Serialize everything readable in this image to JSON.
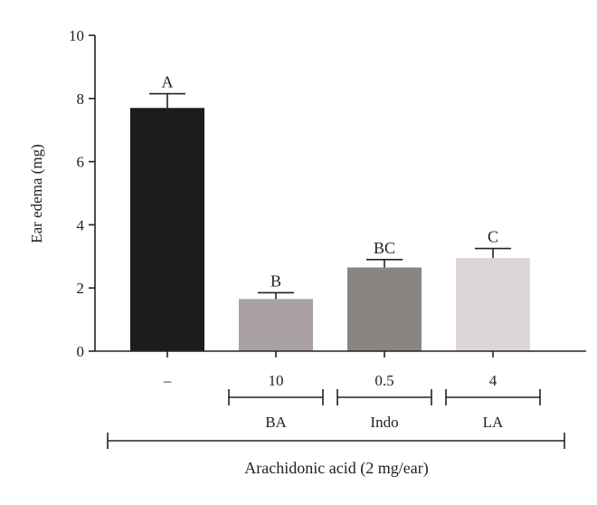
{
  "chart_data": {
    "type": "bar",
    "ylabel": "Ear edema (mg)",
    "ylim": [
      0,
      10
    ],
    "yticks": [
      0,
      2,
      4,
      6,
      8,
      10
    ],
    "grid": false,
    "categories": [
      "–",
      "10",
      "0.5",
      "4"
    ],
    "values": [
      7.7,
      1.65,
      2.65,
      2.95
    ],
    "errors": [
      0.45,
      0.2,
      0.25,
      0.3
    ],
    "significance_letters": [
      "A",
      "B",
      "BC",
      "C"
    ],
    "bar_colors": [
      "#1c1c1c",
      "#a9a1a3",
      "#8a8483",
      "#dcd6d6"
    ],
    "group_labels": [
      {
        "label": "BA",
        "covers": [
          1
        ]
      },
      {
        "label": "Indo",
        "covers": [
          2
        ]
      },
      {
        "label": "LA",
        "covers": [
          3
        ]
      }
    ],
    "treatment_label": "Arachidonic acid (2 mg/ear)"
  }
}
